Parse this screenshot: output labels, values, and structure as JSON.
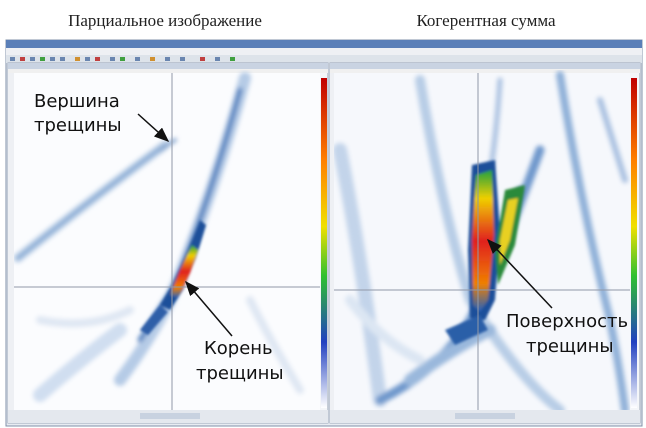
{
  "captions": [
    "Парциальное изображение",
    "Когерентная сумма"
  ],
  "annotations": [
    {
      "lines": [
        "Вершина",
        "трещины"
      ]
    },
    {
      "lines": [
        "Корень",
        "трещины"
      ]
    },
    {
      "lines": [
        "Поверхность",
        "трещины"
      ]
    }
  ]
}
